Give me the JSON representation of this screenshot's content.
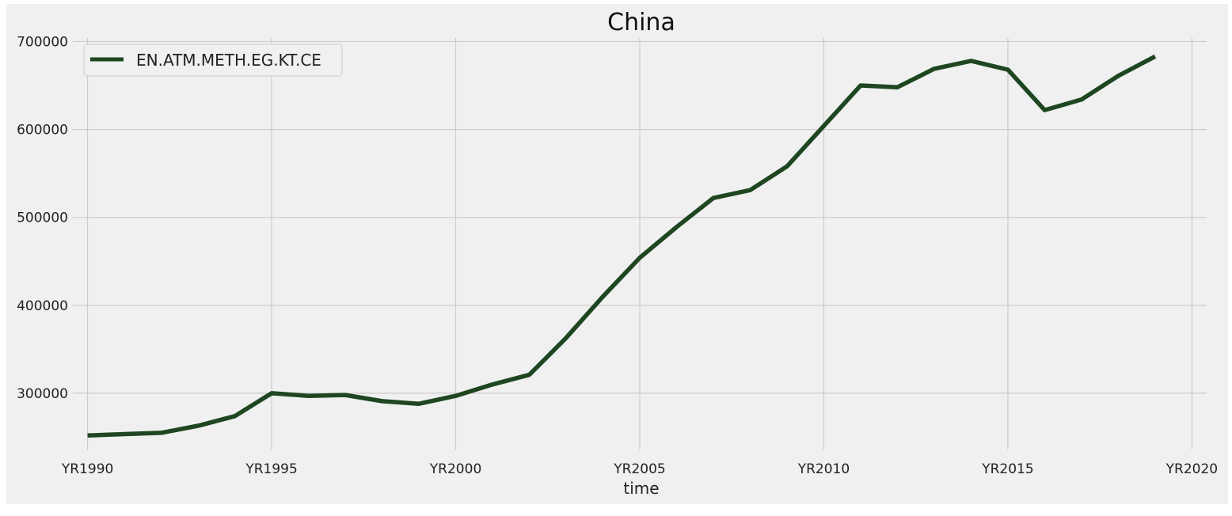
{
  "chart_data": {
    "type": "line",
    "title": "China",
    "xlabel": "time",
    "ylabel": "",
    "x_ticks": [
      "YR1990",
      "YR1995",
      "YR2000",
      "YR2005",
      "YR2010",
      "YR2015",
      "YR2020"
    ],
    "y_ticks": [
      300000,
      400000,
      500000,
      600000,
      700000
    ],
    "xlim": [
      1989.6,
      2020.4
    ],
    "ylim": [
      236000,
      704000
    ],
    "grid": true,
    "legend_position": "top-left",
    "x": [
      1990,
      1991,
      1992,
      1993,
      1994,
      1995,
      1996,
      1997,
      1998,
      1999,
      2000,
      2001,
      2002,
      2003,
      2004,
      2005,
      2006,
      2007,
      2008,
      2009,
      2010,
      2011,
      2012,
      2013,
      2014,
      2015,
      2016,
      2017,
      2018,
      2019
    ],
    "series": [
      {
        "name": "EN.ATM.METH.EG.KT.CE",
        "color": "#1e4620",
        "values": [
          252000,
          253500,
          255000,
          263000,
          274000,
          300000,
          297000,
          298000,
          291000,
          288000,
          297000,
          310000,
          321000,
          363000,
          410000,
          454000,
          489000,
          522000,
          531000,
          558000,
          604000,
          650000,
          648000,
          669000,
          678000,
          668000,
          622000,
          634000,
          661000,
          683000
        ]
      }
    ]
  }
}
